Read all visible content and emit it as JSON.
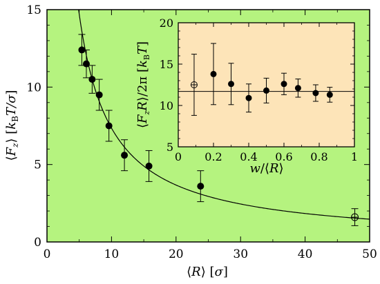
{
  "colors": {
    "main_background": "#b5f37f",
    "inset_background": "#fde4b8",
    "axis": "#000000",
    "marker": "#000000"
  },
  "chart_data": [
    {
      "type": "scatter",
      "panel": "main",
      "xlabel": "⟨R⟩   [σ]",
      "ylabel": "⟨F_z⟩   [k_B T/σ]",
      "xlim": [
        0,
        50
      ],
      "ylim": [
        0,
        15
      ],
      "x_ticks": [
        0,
        10,
        20,
        30,
        40,
        50
      ],
      "y_ticks": [
        0,
        5,
        10,
        15
      ],
      "grid": false,
      "series": [
        {
          "marker": "filled-circle",
          "points": [
            {
              "x": 5.4,
              "y": 12.4,
              "yerr": 1.0
            },
            {
              "x": 6.1,
              "y": 11.5,
              "yerr": 0.9
            },
            {
              "x": 7.0,
              "y": 10.5,
              "yerr": 0.9
            },
            {
              "x": 8.1,
              "y": 9.5,
              "yerr": 1.0
            },
            {
              "x": 9.6,
              "y": 7.5,
              "yerr": 1.0
            },
            {
              "x": 12.0,
              "y": 5.6,
              "yerr": 1.0
            },
            {
              "x": 15.8,
              "y": 4.9,
              "yerr": 1.0
            },
            {
              "x": 23.8,
              "y": 3.6,
              "yerr": 1.0
            }
          ]
        },
        {
          "marker": "open-circle-cross",
          "points": [
            {
              "x": 47.7,
              "y": 1.6,
              "yerr": 0.55
            }
          ]
        },
        {
          "style": "solid-line",
          "function": "y = 73.5 / x",
          "x_range": [
            4.9,
            50
          ]
        }
      ]
    },
    {
      "type": "scatter",
      "panel": "inset",
      "xlabel": "w/⟨R⟩",
      "ylabel": "⟨F_z R⟩/2π   [k_B T]",
      "xlim": [
        0,
        1
      ],
      "ylim": [
        5,
        20
      ],
      "x_ticks": [
        0,
        0.2,
        0.4,
        0.6,
        0.8,
        1
      ],
      "y_ticks": [
        5,
        10,
        15,
        20
      ],
      "grid": false,
      "series": [
        {
          "marker": "filled-circle",
          "points": [
            {
              "x": 0.2,
              "y": 13.8,
              "yerr": 3.7
            },
            {
              "x": 0.3,
              "y": 12.6,
              "yerr": 2.5
            },
            {
              "x": 0.4,
              "y": 10.9,
              "yerr": 1.7
            },
            {
              "x": 0.5,
              "y": 11.8,
              "yerr": 1.5
            },
            {
              "x": 0.6,
              "y": 12.6,
              "yerr": 1.3
            },
            {
              "x": 0.68,
              "y": 12.1,
              "yerr": 1.1
            },
            {
              "x": 0.78,
              "y": 11.5,
              "yerr": 1.0
            },
            {
              "x": 0.86,
              "y": 11.3,
              "yerr": 0.9
            }
          ]
        },
        {
          "marker": "open-circle-cross",
          "points": [
            {
              "x": 0.09,
              "y": 12.5,
              "yerr": 3.7
            }
          ]
        },
        {
          "style": "horizontal-line",
          "y": 11.7
        }
      ]
    }
  ]
}
